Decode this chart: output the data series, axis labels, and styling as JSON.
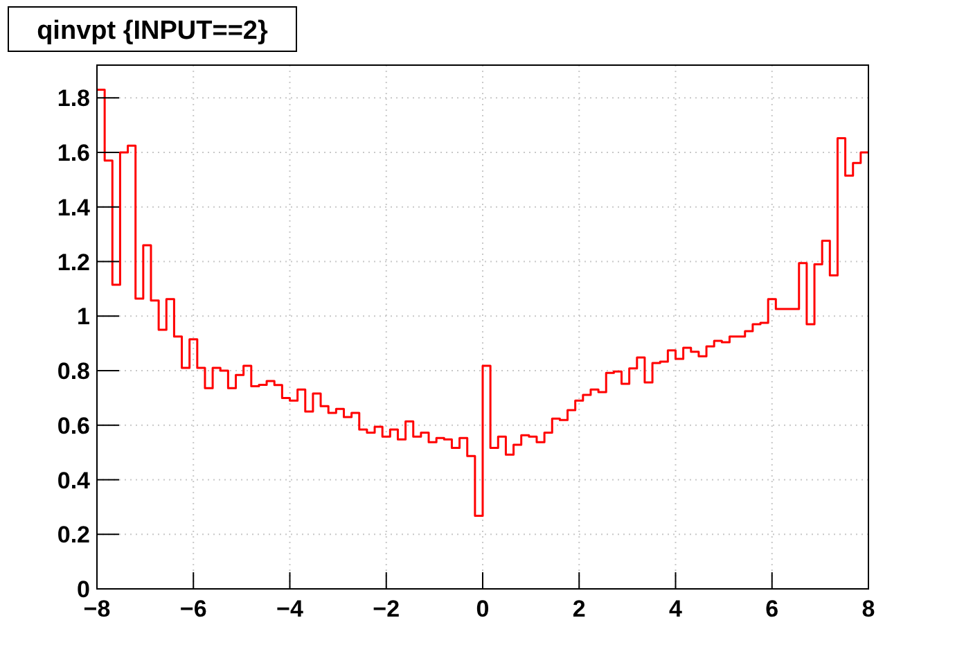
{
  "chart_data": {
    "type": "histogram",
    "title": "qinvpt {INPUT==2}",
    "bins": [
      -8,
      -7.84,
      -7.68,
      -7.52,
      -7.36,
      -7.2,
      -7.04,
      -6.88,
      -6.72,
      -6.56,
      -6.4,
      -6.24,
      -6.08,
      -5.92,
      -5.76,
      -5.6,
      -5.44,
      -5.28,
      -5.12,
      -4.96,
      -4.8,
      -4.64,
      -4.48,
      -4.32,
      -4.16,
      -4,
      -3.84,
      -3.68,
      -3.52,
      -3.36,
      -3.2,
      -3.04,
      -2.88,
      -2.72,
      -2.56,
      -2.4,
      -2.24,
      -2.08,
      -1.92,
      -1.76,
      -1.6,
      -1.44,
      -1.28,
      -1.12,
      -0.96,
      -0.8,
      -0.64,
      -0.48,
      -0.32,
      -0.16,
      0,
      0.16,
      0.32,
      0.48,
      0.64,
      0.8,
      0.96,
      1.12,
      1.28,
      1.44,
      1.6,
      1.76,
      1.92,
      2.08,
      2.24,
      2.4,
      2.56,
      2.72,
      2.88,
      3.04,
      3.2,
      3.36,
      3.52,
      3.68,
      3.84,
      4,
      4.16,
      4.32,
      4.48,
      4.64,
      4.8,
      4.96,
      5.12,
      5.28,
      5.44,
      5.6,
      5.76,
      5.92,
      6.08,
      6.24,
      6.4,
      6.56,
      6.72,
      6.88,
      7.04,
      7.2,
      7.36,
      7.52,
      7.68,
      7.84,
      8
    ],
    "values": [
      1.83,
      1.57,
      1.115,
      1.6,
      1.625,
      1.064,
      1.26,
      1.057,
      0.95,
      1.062,
      0.925,
      0.81,
      0.915,
      0.81,
      0.736,
      0.81,
      0.8,
      0.736,
      0.784,
      0.818,
      0.743,
      0.748,
      0.762,
      0.747,
      0.7,
      0.69,
      0.731,
      0.65,
      0.716,
      0.67,
      0.645,
      0.66,
      0.63,
      0.645,
      0.584,
      0.573,
      0.594,
      0.558,
      0.584,
      0.548,
      0.614,
      0.558,
      0.573,
      0.538,
      0.553,
      0.548,
      0.517,
      0.553,
      0.487,
      0.268,
      0.818,
      0.517,
      0.558,
      0.492,
      0.528,
      0.563,
      0.558,
      0.538,
      0.573,
      0.624,
      0.619,
      0.655,
      0.69,
      0.711,
      0.731,
      0.721,
      0.792,
      0.797,
      0.752,
      0.808,
      0.848,
      0.757,
      0.828,
      0.833,
      0.874,
      0.843,
      0.884,
      0.869,
      0.853,
      0.889,
      0.909,
      0.904,
      0.925,
      0.925,
      0.945,
      0.97,
      0.975,
      1.062,
      1.026,
      1.026,
      1.026,
      1.194,
      0.97,
      1.19,
      1.276,
      1.149,
      1.652,
      1.515,
      1.561,
      1.6
    ],
    "color": "#ff0000",
    "xlim": [
      -8,
      8
    ],
    "xticks": [
      -8,
      -6,
      -4,
      -2,
      0,
      2,
      4,
      6,
      8
    ],
    "ylim": [
      0,
      1.92
    ],
    "yticks": [
      0,
      0.2,
      0.4,
      0.6,
      0.8,
      1,
      1.2,
      1.4,
      1.6,
      1.8
    ],
    "grid": true
  }
}
